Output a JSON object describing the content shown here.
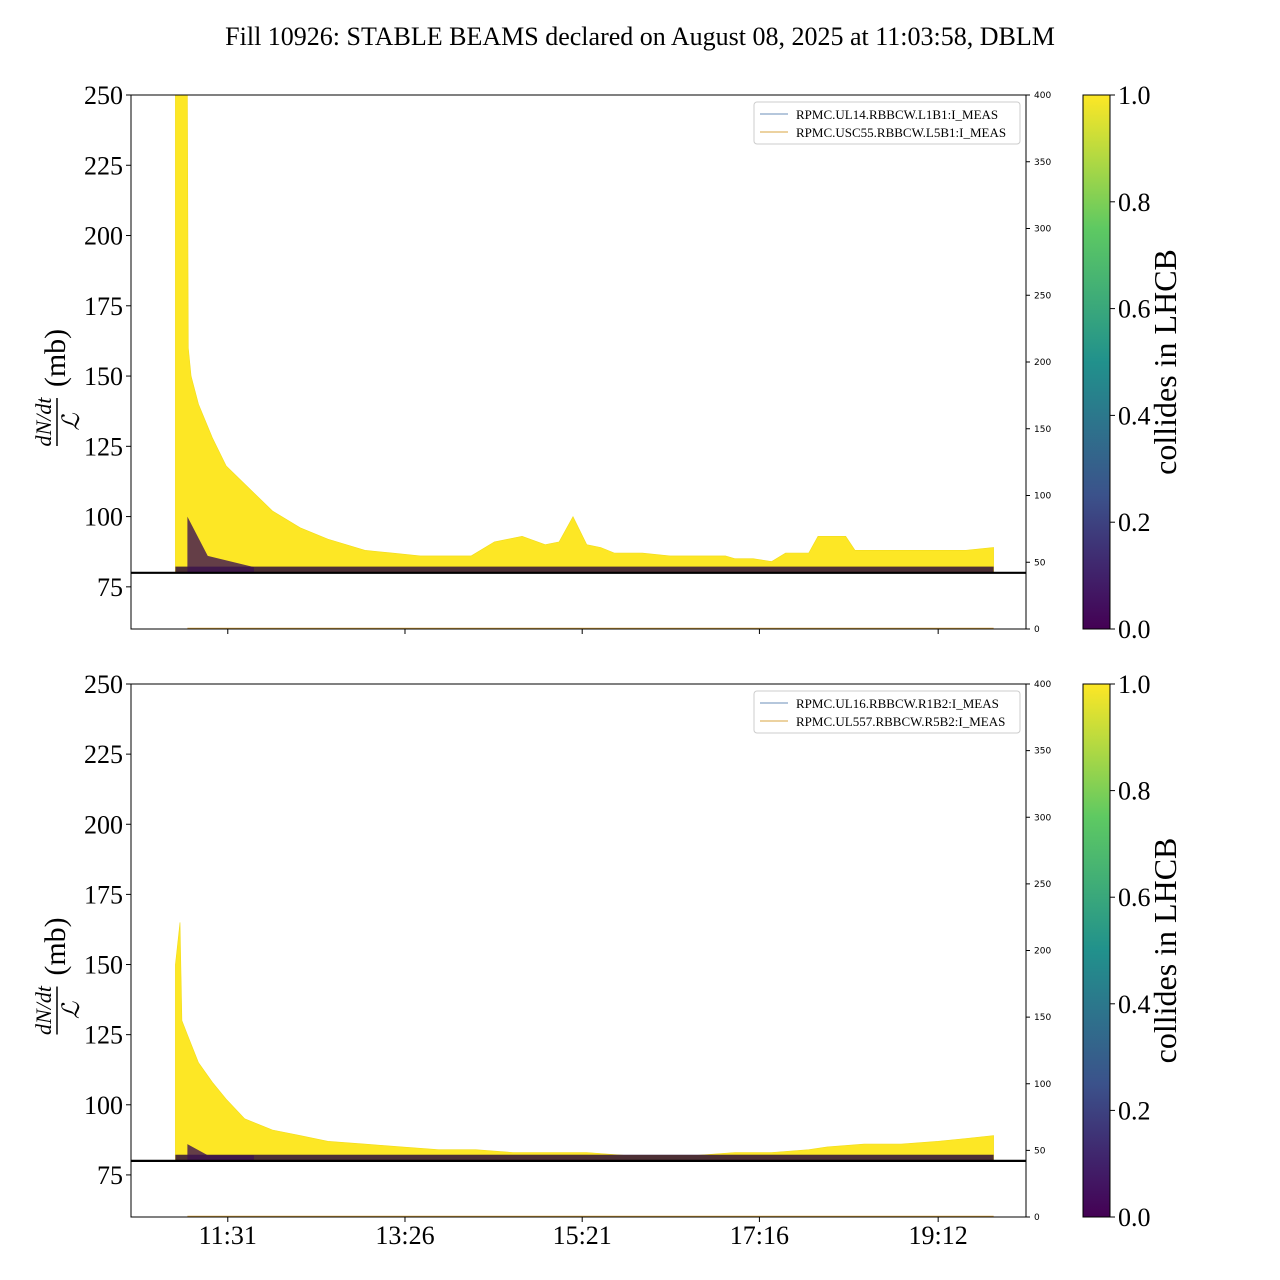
{
  "figure": {
    "title": "Fill 10926: STABLE BEAMS declared on August 08, 2025 at 11:03:58, DBLM"
  },
  "chart_data": [
    {
      "type": "line",
      "panel": "top",
      "ylabel": "dN/dt / ℒ (mb)",
      "ylabel_num": "dN/dt",
      "ylabel_den": "ℒ",
      "ylabel_unit": "(mb)",
      "ylim": [
        60,
        250
      ],
      "yticks": [
        75,
        100,
        125,
        150,
        175,
        200,
        225,
        250
      ],
      "y2lim": [
        0,
        400
      ],
      "y2ticks": [
        0,
        50,
        100,
        150,
        200,
        250,
        300,
        350,
        400
      ],
      "xticklabels": [],
      "threshold_line": 80,
      "legend_location": "upper right",
      "legend": [
        {
          "name": "RPMC.UL14.RBBCW.L1B1:I_MEAS",
          "color": "#6b8fb8"
        },
        {
          "name": "RPMC.USC55.RBBCW.L5B1:I_MEAS",
          "color": "#d9a441"
        }
      ],
      "envelope": {
        "x_hours": [
          10.95,
          11.08,
          11.09,
          11.12,
          11.2,
          11.35,
          11.5,
          11.75,
          12.0,
          12.3,
          12.6,
          13.0,
          13.3,
          13.6,
          14.0,
          14.15,
          14.4,
          14.7,
          14.95,
          15.1,
          15.25,
          15.4,
          15.55,
          15.7,
          16.0,
          16.3,
          16.6,
          16.9,
          17.0,
          17.2,
          17.4,
          17.55,
          17.8,
          17.9,
          18.2,
          18.3,
          18.6,
          19.0,
          19.5,
          19.8
        ],
        "y_mb": [
          250,
          250,
          160,
          150,
          140,
          128,
          118,
          110,
          102,
          96,
          92,
          88,
          87,
          86,
          86,
          86,
          91,
          93,
          90,
          91,
          100,
          90,
          89,
          87,
          87,
          86,
          86,
          86,
          85,
          85,
          84,
          87,
          87,
          93,
          93,
          88,
          88,
          88,
          88,
          89
        ]
      },
      "colorbar": {
        "label": "collides in LHCB",
        "min": 0.0,
        "max": 1.0,
        "ticks": [
          "0.0",
          "0.2",
          "0.4",
          "0.6",
          "0.8",
          "1.0"
        ],
        "colormap": [
          "#440154",
          "#3b528b",
          "#21918c",
          "#5ec962",
          "#fde725"
        ]
      }
    },
    {
      "type": "line",
      "panel": "bottom",
      "ylabel": "dN/dt / ℒ (mb)",
      "ylabel_num": "dN/dt",
      "ylabel_den": "ℒ",
      "ylabel_unit": "(mb)",
      "ylim": [
        60,
        250
      ],
      "yticks": [
        75,
        100,
        125,
        150,
        175,
        200,
        225,
        250
      ],
      "y2lim": [
        0,
        400
      ],
      "y2ticks": [
        0,
        50,
        100,
        150,
        200,
        250,
        300,
        350,
        400
      ],
      "xticklabels": [
        "11:31",
        "13:26",
        "15:21",
        "17:16",
        "19:12"
      ],
      "threshold_line": 80,
      "legend_location": "upper right",
      "legend": [
        {
          "name": "RPMC.UL16.RBBCW.R1B2:I_MEAS",
          "color": "#6b8fb8"
        },
        {
          "name": "RPMC.UL557.RBBCW.R5B2:I_MEAS",
          "color": "#d9a441"
        }
      ],
      "envelope": {
        "x_hours": [
          10.95,
          11.0,
          11.02,
          11.08,
          11.2,
          11.35,
          11.5,
          11.7,
          12.0,
          12.3,
          12.6,
          13.0,
          13.4,
          13.8,
          14.2,
          14.6,
          15.0,
          15.4,
          15.8,
          16.2,
          16.6,
          17.0,
          17.4,
          17.8,
          18.0,
          18.4,
          18.8,
          19.2,
          19.5,
          19.8
        ],
        "y_mb": [
          150,
          165,
          130,
          125,
          115,
          108,
          102,
          95,
          91,
          89,
          87,
          86,
          85,
          84,
          84,
          83,
          83,
          83,
          82,
          82,
          82,
          83,
          83,
          84,
          85,
          86,
          86,
          87,
          88,
          89
        ]
      },
      "colorbar": {
        "label": "collides in LHCB",
        "min": 0.0,
        "max": 1.0,
        "ticks": [
          "0.0",
          "0.2",
          "0.4",
          "0.6",
          "0.8",
          "1.0"
        ],
        "colormap": [
          "#440154",
          "#3b528b",
          "#21918c",
          "#5ec962",
          "#fde725"
        ]
      }
    }
  ]
}
